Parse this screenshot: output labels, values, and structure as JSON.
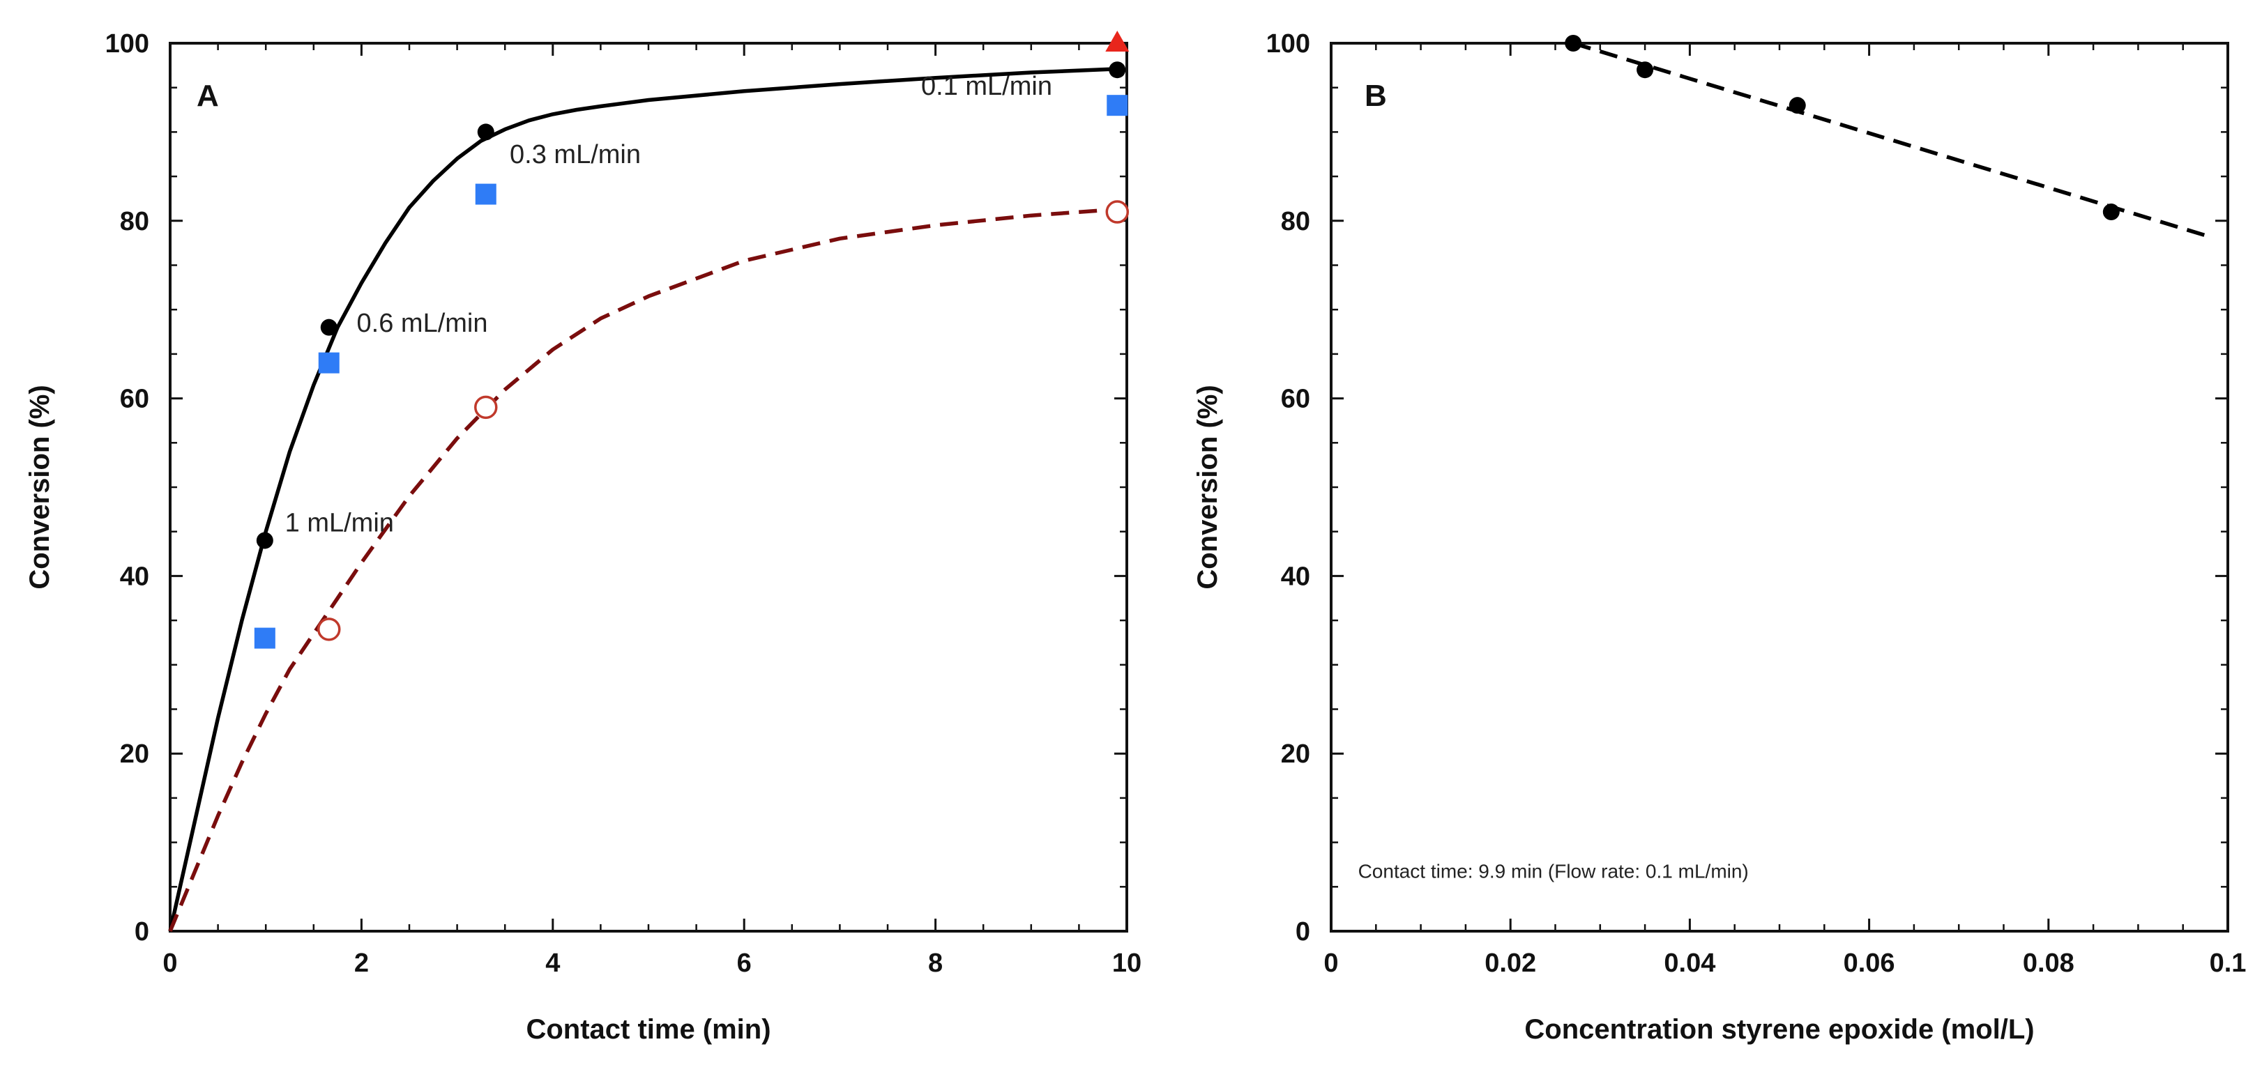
{
  "colors": {
    "axis": "#111111",
    "fit_solid": "#000000",
    "fit_dashed": "#7a0d0d",
    "square": "#2f7cf6",
    "open_circle": "#c0392b",
    "triangle": "#e8261c"
  },
  "chart_data": [
    {
      "type": "scatter",
      "panel": "A",
      "xlabel": "Contact time (min)",
      "ylabel": "Conversion (%)",
      "xlim": [
        0,
        10
      ],
      "ylim": [
        0,
        100
      ],
      "xticks": [
        0,
        2,
        4,
        6,
        8,
        10
      ],
      "yticks": [
        0,
        20,
        40,
        60,
        80,
        100
      ],
      "grid": false,
      "series": [
        {
          "name": "filled circles",
          "marker": "filled-circle",
          "x": [
            0.99,
            1.66,
            3.3,
            9.9
          ],
          "y": [
            44,
            68,
            90,
            97
          ]
        },
        {
          "name": "squares",
          "marker": "square",
          "x": [
            0.99,
            1.66,
            3.3,
            9.9
          ],
          "y": [
            33,
            64,
            83,
            93
          ]
        },
        {
          "name": "open circles",
          "marker": "open-circle",
          "x": [
            1.66,
            3.3,
            9.9
          ],
          "y": [
            34,
            59,
            81
          ]
        },
        {
          "name": "triangle",
          "marker": "triangle",
          "x": [
            9.9
          ],
          "y": [
            100
          ]
        },
        {
          "name": "fit solid",
          "style": "solid-line",
          "x": [
            0,
            0.25,
            0.5,
            0.75,
            1.0,
            1.25,
            1.5,
            1.75,
            2.0,
            2.25,
            2.5,
            2.75,
            3.0,
            3.25,
            3.5,
            3.75,
            4.0,
            4.25,
            4.5,
            5,
            6,
            7,
            8,
            9,
            9.9
          ],
          "y": [
            0,
            12,
            24,
            35,
            45,
            54,
            61.5,
            68,
            73,
            77.5,
            81.5,
            84.5,
            87,
            89,
            90.3,
            91.3,
            92,
            92.5,
            92.9,
            93.6,
            94.6,
            95.4,
            96.1,
            96.7,
            97.1
          ]
        },
        {
          "name": "fit dashed",
          "style": "dashed-line",
          "x": [
            0,
            0.25,
            0.5,
            0.75,
            1.0,
            1.25,
            1.5,
            1.75,
            2.0,
            2.5,
            3.0,
            3.5,
            4.0,
            4.5,
            5,
            6,
            7,
            8,
            9,
            9.9
          ],
          "y": [
            0,
            6.5,
            13,
            19,
            24.5,
            29.5,
            33.5,
            37.5,
            41.5,
            49,
            55.5,
            61,
            65.5,
            69,
            71.5,
            75.5,
            78,
            79.5,
            80.6,
            81.3
          ]
        }
      ],
      "annotations": [
        {
          "text": "1 mL/min",
          "x": 1.2,
          "y": 45
        },
        {
          "text": "0.6 mL/min",
          "x": 1.95,
          "y": 67.5
        },
        {
          "text": "0.3 mL/min",
          "x": 3.55,
          "y": 86.5
        },
        {
          "text": "0.1 mL/min",
          "x": 7.85,
          "y": 94.2
        }
      ]
    },
    {
      "type": "scatter",
      "panel": "B",
      "xlabel": "Concentration styrene epoxide (mol/L)",
      "ylabel": "Conversion (%)",
      "xlim": [
        0,
        0.1
      ],
      "ylim": [
        0,
        100
      ],
      "xticks": [
        0,
        0.02,
        0.04,
        0.06,
        0.08,
        0.1
      ],
      "yticks": [
        0,
        20,
        40,
        60,
        80,
        100
      ],
      "grid": false,
      "series": [
        {
          "name": "filled circles",
          "marker": "filled-circle",
          "x": [
            0.027,
            0.035,
            0.052,
            0.087
          ],
          "y": [
            100,
            97,
            93,
            81
          ]
        },
        {
          "name": "linear fit",
          "style": "dashed-line",
          "x": [
            0.027,
            0.098
          ],
          "y": [
            100,
            78.2
          ]
        }
      ],
      "annotations": [
        {
          "text": "Contact time: 9.9 min (Flow rate: 0.1 mL/min)",
          "x": 0.003,
          "y": 6
        }
      ]
    }
  ]
}
